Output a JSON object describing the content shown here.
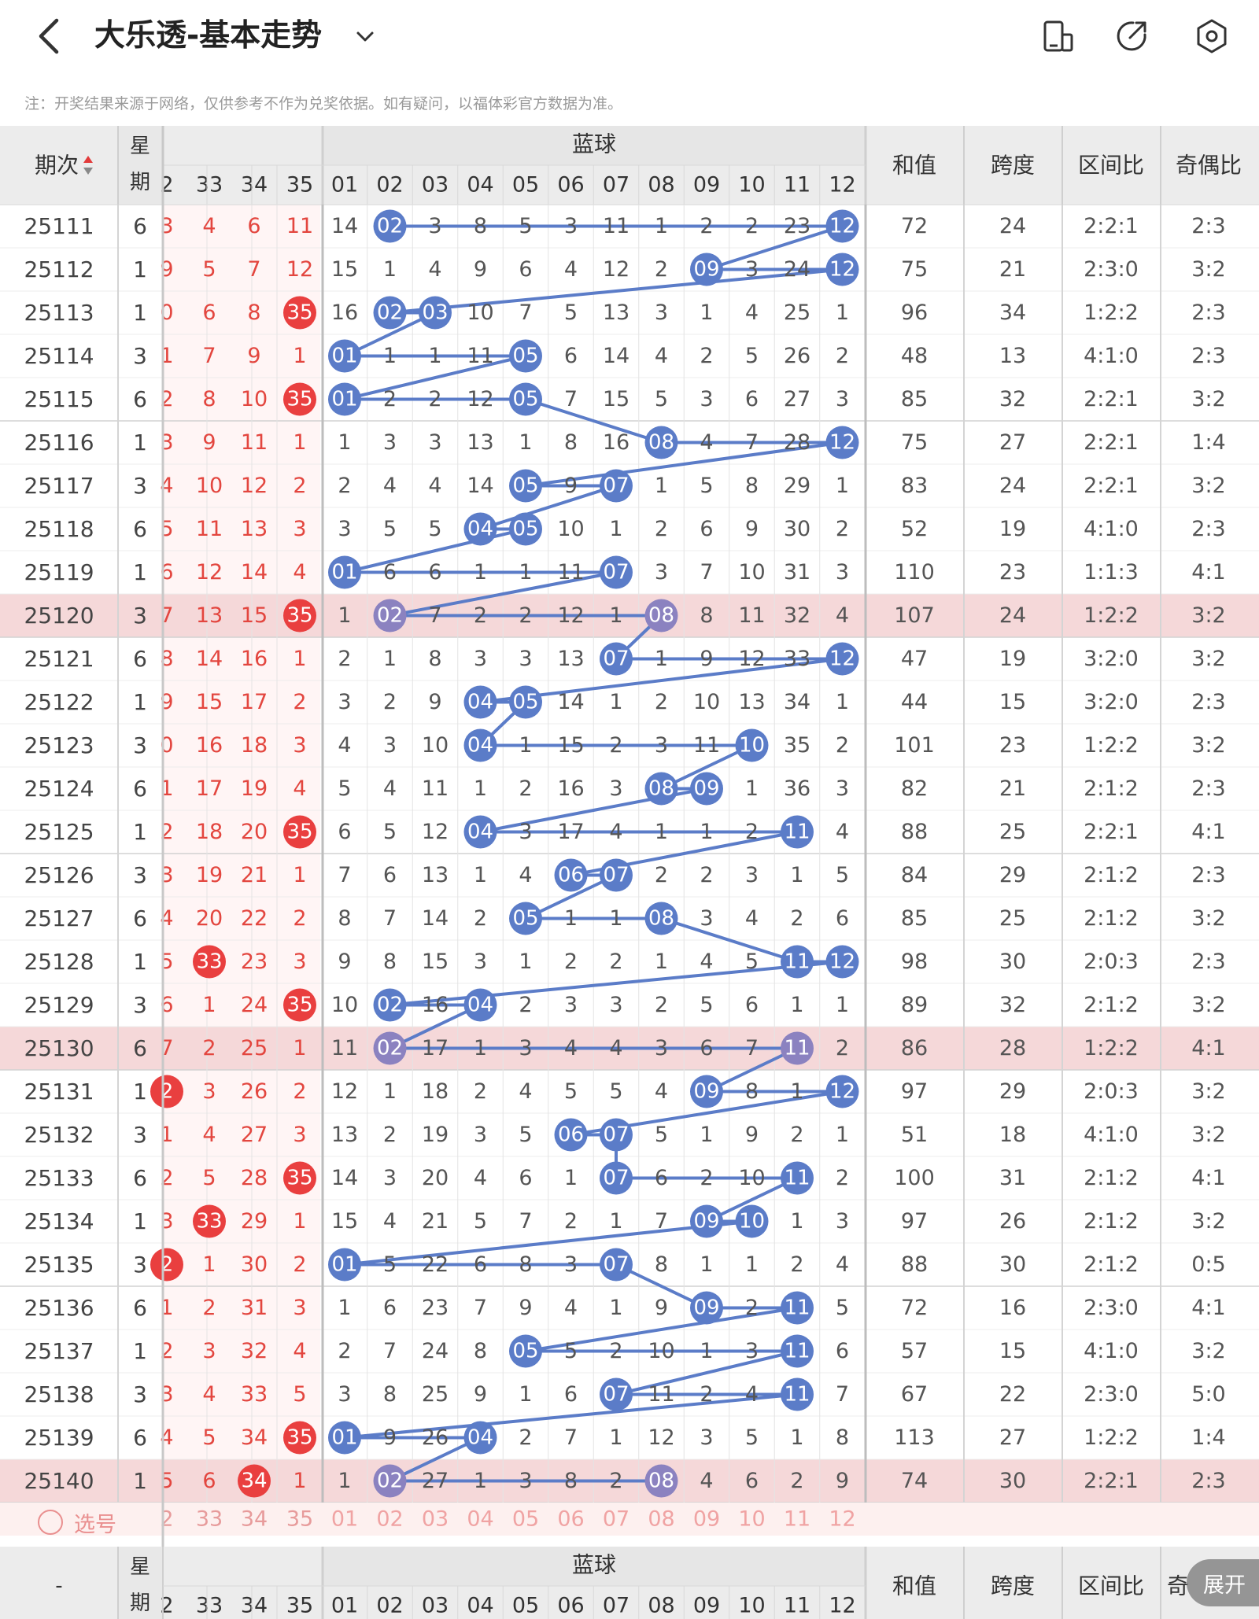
{
  "header": {
    "title": "大乐透-基本走势",
    "back_icon": "chevron-left-icon",
    "dropdown_icon": "chevron-down-icon",
    "icons": [
      "split-screen-icon",
      "share-icon",
      "settings-icon"
    ]
  },
  "note": "注：开奖结果来源于网络，仅供参考不作为兑奖依据。如有疑问，以福体彩官方数据为准。",
  "columns": {
    "period": "期次",
    "week": "星期",
    "week_lines": [
      "星",
      "期"
    ],
    "blue_group": "蓝球",
    "red_tail": [
      "2",
      "33",
      "34",
      "35"
    ],
    "blue": [
      "01",
      "02",
      "03",
      "04",
      "05",
      "06",
      "07",
      "08",
      "09",
      "10",
      "11",
      "12"
    ],
    "sum": "和值",
    "span": "跨度",
    "zone_ratio": "区间比",
    "odd_even": "奇偶比",
    "odd_even_cut": "奇"
  },
  "colors": {
    "blue_ball": "#5b7cc8",
    "red_ball": "#e93f3f",
    "highlight_row": "#f5d8d9",
    "highlight_ball": "#8b82c0",
    "red_text": "#e3463f",
    "header_bg": "#ececec"
  },
  "rows": [
    {
      "period": "25111",
      "week": "6",
      "red": [
        "3",
        "4",
        "6",
        "11"
      ],
      "red_hit": [],
      "blue": [
        "14",
        "02",
        "3",
        "8",
        "5",
        "3",
        "11",
        "1",
        "2",
        "2",
        "23",
        "12"
      ],
      "blue_hit": [
        1,
        11
      ],
      "sum": "72",
      "span": "24",
      "zone": "2:2:1",
      "oe": "2:3",
      "hl": false
    },
    {
      "period": "25112",
      "week": "1",
      "red": [
        "9",
        "5",
        "7",
        "12"
      ],
      "red_hit": [],
      "blue": [
        "15",
        "1",
        "4",
        "9",
        "6",
        "4",
        "12",
        "2",
        "09",
        "3",
        "24",
        "12"
      ],
      "blue_hit": [
        8,
        11
      ],
      "sum": "75",
      "span": "21",
      "zone": "2:3:0",
      "oe": "3:2",
      "hl": false
    },
    {
      "period": "25113",
      "week": "1",
      "red": [
        "0",
        "6",
        "8",
        "35"
      ],
      "red_hit": [
        3
      ],
      "blue": [
        "16",
        "02",
        "03",
        "10",
        "7",
        "5",
        "13",
        "3",
        "1",
        "4",
        "25",
        "1"
      ],
      "blue_hit": [
        1,
        2
      ],
      "sum": "96",
      "span": "34",
      "zone": "1:2:2",
      "oe": "2:3",
      "hl": false
    },
    {
      "period": "25114",
      "week": "3",
      "red": [
        "1",
        "7",
        "9",
        "1"
      ],
      "red_hit": [],
      "blue": [
        "01",
        "1",
        "1",
        "11",
        "05",
        "6",
        "14",
        "4",
        "2",
        "5",
        "26",
        "2"
      ],
      "blue_hit": [
        0,
        4
      ],
      "sum": "48",
      "span": "13",
      "zone": "4:1:0",
      "oe": "2:3",
      "hl": false
    },
    {
      "period": "25115",
      "week": "6",
      "red": [
        "2",
        "8",
        "10",
        "35"
      ],
      "red_hit": [
        3
      ],
      "blue": [
        "01",
        "2",
        "2",
        "12",
        "05",
        "7",
        "15",
        "5",
        "3",
        "6",
        "27",
        "3"
      ],
      "blue_hit": [
        0,
        4
      ],
      "sum": "85",
      "span": "32",
      "zone": "2:2:1",
      "oe": "3:2",
      "hl": false
    },
    {
      "period": "25116",
      "week": "1",
      "red": [
        "3",
        "9",
        "11",
        "1"
      ],
      "red_hit": [],
      "blue": [
        "1",
        "3",
        "3",
        "13",
        "1",
        "8",
        "16",
        "08",
        "4",
        "7",
        "28",
        "12"
      ],
      "blue_hit": [
        7,
        11
      ],
      "sum": "75",
      "span": "27",
      "zone": "2:2:1",
      "oe": "1:4",
      "hl": false
    },
    {
      "period": "25117",
      "week": "3",
      "red": [
        "4",
        "10",
        "12",
        "2"
      ],
      "red_hit": [],
      "blue": [
        "2",
        "4",
        "4",
        "14",
        "05",
        "9",
        "07",
        "1",
        "5",
        "8",
        "29",
        "1"
      ],
      "blue_hit": [
        4,
        6
      ],
      "sum": "83",
      "span": "24",
      "zone": "2:2:1",
      "oe": "3:2",
      "hl": false
    },
    {
      "period": "25118",
      "week": "6",
      "red": [
        "5",
        "11",
        "13",
        "3"
      ],
      "red_hit": [],
      "blue": [
        "3",
        "5",
        "5",
        "04",
        "05",
        "10",
        "1",
        "2",
        "6",
        "9",
        "30",
        "2"
      ],
      "blue_hit": [
        3,
        4
      ],
      "sum": "52",
      "span": "19",
      "zone": "4:1:0",
      "oe": "2:3",
      "hl": false
    },
    {
      "period": "25119",
      "week": "1",
      "red": [
        "6",
        "12",
        "14",
        "4"
      ],
      "red_hit": [],
      "blue": [
        "01",
        "6",
        "6",
        "1",
        "1",
        "11",
        "07",
        "3",
        "7",
        "10",
        "31",
        "3"
      ],
      "blue_hit": [
        0,
        6
      ],
      "sum": "110",
      "span": "23",
      "zone": "1:1:3",
      "oe": "4:1",
      "hl": false
    },
    {
      "period": "25120",
      "week": "3",
      "red": [
        "7",
        "13",
        "15",
        "35"
      ],
      "red_hit": [
        3
      ],
      "blue": [
        "1",
        "02",
        "7",
        "2",
        "2",
        "12",
        "1",
        "08",
        "8",
        "11",
        "32",
        "4"
      ],
      "blue_hit": [
        1,
        7
      ],
      "sum": "107",
      "span": "24",
      "zone": "1:2:2",
      "oe": "3:2",
      "hl": true
    },
    {
      "period": "25121",
      "week": "6",
      "red": [
        "8",
        "14",
        "16",
        "1"
      ],
      "red_hit": [],
      "blue": [
        "2",
        "1",
        "8",
        "3",
        "3",
        "13",
        "07",
        "1",
        "9",
        "12",
        "33",
        "12"
      ],
      "blue_hit": [
        6,
        11
      ],
      "sum": "47",
      "span": "19",
      "zone": "3:2:0",
      "oe": "3:2",
      "hl": false
    },
    {
      "period": "25122",
      "week": "1",
      "red": [
        "9",
        "15",
        "17",
        "2"
      ],
      "red_hit": [],
      "blue": [
        "3",
        "2",
        "9",
        "04",
        "05",
        "14",
        "1",
        "2",
        "10",
        "13",
        "34",
        "1"
      ],
      "blue_hit": [
        3,
        4
      ],
      "sum": "44",
      "span": "15",
      "zone": "3:2:0",
      "oe": "2:3",
      "hl": false
    },
    {
      "period": "25123",
      "week": "3",
      "red": [
        "0",
        "16",
        "18",
        "3"
      ],
      "red_hit": [],
      "blue": [
        "4",
        "3",
        "10",
        "04",
        "1",
        "15",
        "2",
        "3",
        "11",
        "10",
        "35",
        "2"
      ],
      "blue_hit": [
        3,
        9
      ],
      "sum": "101",
      "span": "23",
      "zone": "1:2:2",
      "oe": "3:2",
      "hl": false
    },
    {
      "period": "25124",
      "week": "6",
      "red": [
        "1",
        "17",
        "19",
        "4"
      ],
      "red_hit": [],
      "blue": [
        "5",
        "4",
        "11",
        "1",
        "2",
        "16",
        "3",
        "08",
        "09",
        "1",
        "36",
        "3"
      ],
      "blue_hit": [
        7,
        8
      ],
      "sum": "82",
      "span": "21",
      "zone": "2:1:2",
      "oe": "2:3",
      "hl": false
    },
    {
      "period": "25125",
      "week": "1",
      "red": [
        "2",
        "18",
        "20",
        "35"
      ],
      "red_hit": [
        3
      ],
      "blue": [
        "6",
        "5",
        "12",
        "04",
        "3",
        "17",
        "4",
        "1",
        "1",
        "2",
        "11",
        "4"
      ],
      "blue_hit": [
        3,
        10
      ],
      "sum": "88",
      "span": "25",
      "zone": "2:2:1",
      "oe": "4:1",
      "hl": false
    },
    {
      "period": "25126",
      "week": "3",
      "red": [
        "3",
        "19",
        "21",
        "1"
      ],
      "red_hit": [],
      "blue": [
        "7",
        "6",
        "13",
        "1",
        "4",
        "06",
        "07",
        "2",
        "2",
        "3",
        "1",
        "5"
      ],
      "blue_hit": [
        5,
        6
      ],
      "sum": "84",
      "span": "29",
      "zone": "2:1:2",
      "oe": "2:3",
      "hl": false
    },
    {
      "period": "25127",
      "week": "6",
      "red": [
        "4",
        "20",
        "22",
        "2"
      ],
      "red_hit": [],
      "blue": [
        "8",
        "7",
        "14",
        "2",
        "05",
        "1",
        "1",
        "08",
        "3",
        "4",
        "2",
        "6"
      ],
      "blue_hit": [
        4,
        7
      ],
      "sum": "85",
      "span": "25",
      "zone": "2:1:2",
      "oe": "3:2",
      "hl": false
    },
    {
      "period": "25128",
      "week": "1",
      "red": [
        "5",
        "33",
        "23",
        "3"
      ],
      "red_hit": [
        1
      ],
      "blue": [
        "9",
        "8",
        "15",
        "3",
        "1",
        "2",
        "2",
        "1",
        "4",
        "5",
        "11",
        "12"
      ],
      "blue_hit": [
        10,
        11
      ],
      "sum": "98",
      "span": "30",
      "zone": "2:0:3",
      "oe": "2:3",
      "hl": false
    },
    {
      "period": "25129",
      "week": "3",
      "red": [
        "6",
        "1",
        "24",
        "35"
      ],
      "red_hit": [
        3
      ],
      "blue": [
        "10",
        "02",
        "16",
        "04",
        "2",
        "3",
        "3",
        "2",
        "5",
        "6",
        "1",
        "1"
      ],
      "blue_hit": [
        1,
        3
      ],
      "sum": "89",
      "span": "32",
      "zone": "2:1:2",
      "oe": "3:2",
      "hl": false
    },
    {
      "period": "25130",
      "week": "6",
      "red": [
        "7",
        "2",
        "25",
        "1"
      ],
      "red_hit": [],
      "blue": [
        "11",
        "02",
        "17",
        "1",
        "3",
        "4",
        "4",
        "3",
        "6",
        "7",
        "11",
        "2"
      ],
      "blue_hit": [
        1,
        10
      ],
      "sum": "86",
      "span": "28",
      "zone": "1:2:2",
      "oe": "4:1",
      "hl": true
    },
    {
      "period": "25131",
      "week": "1",
      "red": [
        "2",
        "3",
        "26",
        "2"
      ],
      "red_hit": [
        0
      ],
      "blue": [
        "12",
        "1",
        "18",
        "2",
        "4",
        "5",
        "5",
        "4",
        "09",
        "8",
        "1",
        "12"
      ],
      "blue_hit": [
        8,
        11
      ],
      "sum": "97",
      "span": "29",
      "zone": "2:0:3",
      "oe": "3:2",
      "hl": false
    },
    {
      "period": "25132",
      "week": "3",
      "red": [
        "1",
        "4",
        "27",
        "3"
      ],
      "red_hit": [],
      "blue": [
        "13",
        "2",
        "19",
        "3",
        "5",
        "06",
        "07",
        "5",
        "1",
        "9",
        "2",
        "1"
      ],
      "blue_hit": [
        5,
        6
      ],
      "sum": "51",
      "span": "18",
      "zone": "4:1:0",
      "oe": "3:2",
      "hl": false
    },
    {
      "period": "25133",
      "week": "6",
      "red": [
        "2",
        "5",
        "28",
        "35"
      ],
      "red_hit": [
        3
      ],
      "blue": [
        "14",
        "3",
        "20",
        "4",
        "6",
        "1",
        "07",
        "6",
        "2",
        "10",
        "11",
        "2"
      ],
      "blue_hit": [
        6,
        10
      ],
      "sum": "100",
      "span": "31",
      "zone": "2:1:2",
      "oe": "4:1",
      "hl": false
    },
    {
      "period": "25134",
      "week": "1",
      "red": [
        "3",
        "33",
        "29",
        "1"
      ],
      "red_hit": [
        1
      ],
      "blue": [
        "15",
        "4",
        "21",
        "5",
        "7",
        "2",
        "1",
        "7",
        "09",
        "10",
        "1",
        "3"
      ],
      "blue_hit": [
        8,
        9
      ],
      "sum": "97",
      "span": "26",
      "zone": "2:1:2",
      "oe": "3:2",
      "hl": false
    },
    {
      "period": "25135",
      "week": "3",
      "red": [
        "2",
        "1",
        "30",
        "2"
      ],
      "red_hit": [
        0
      ],
      "blue": [
        "01",
        "5",
        "22",
        "6",
        "8",
        "3",
        "07",
        "8",
        "1",
        "1",
        "2",
        "4"
      ],
      "blue_hit": [
        0,
        6
      ],
      "sum": "88",
      "span": "30",
      "zone": "2:1:2",
      "oe": "0:5",
      "hl": false
    },
    {
      "period": "25136",
      "week": "6",
      "red": [
        "1",
        "2",
        "31",
        "3"
      ],
      "red_hit": [],
      "blue": [
        "1",
        "6",
        "23",
        "7",
        "9",
        "4",
        "1",
        "9",
        "09",
        "2",
        "11",
        "5"
      ],
      "blue_hit": [
        8,
        10
      ],
      "sum": "72",
      "span": "16",
      "zone": "2:3:0",
      "oe": "4:1",
      "hl": false
    },
    {
      "period": "25137",
      "week": "1",
      "red": [
        "2",
        "3",
        "32",
        "4"
      ],
      "red_hit": [],
      "blue": [
        "2",
        "7",
        "24",
        "8",
        "05",
        "5",
        "2",
        "10",
        "1",
        "3",
        "11",
        "6"
      ],
      "blue_hit": [
        4,
        10
      ],
      "sum": "57",
      "span": "15",
      "zone": "4:1:0",
      "oe": "3:2",
      "hl": false
    },
    {
      "period": "25138",
      "week": "3",
      "red": [
        "3",
        "4",
        "33",
        "5"
      ],
      "red_hit": [],
      "blue": [
        "3",
        "8",
        "25",
        "9",
        "1",
        "6",
        "07",
        "11",
        "2",
        "4",
        "11",
        "7"
      ],
      "blue_hit": [
        6,
        10
      ],
      "sum": "67",
      "span": "22",
      "zone": "2:3:0",
      "oe": "5:0",
      "hl": false
    },
    {
      "period": "25139",
      "week": "6",
      "red": [
        "4",
        "5",
        "34",
        "35"
      ],
      "red_hit": [
        3
      ],
      "blue": [
        "01",
        "9",
        "26",
        "04",
        "2",
        "7",
        "1",
        "12",
        "3",
        "5",
        "1",
        "8"
      ],
      "blue_hit": [
        0,
        3
      ],
      "sum": "113",
      "span": "27",
      "zone": "1:2:2",
      "oe": "1:4",
      "hl": false
    },
    {
      "period": "25140",
      "week": "1",
      "red": [
        "5",
        "6",
        "34",
        "1"
      ],
      "red_hit": [
        2
      ],
      "blue": [
        "1",
        "02",
        "27",
        "1",
        "3",
        "8",
        "2",
        "08",
        "4",
        "6",
        "2",
        "9"
      ],
      "blue_hit": [
        1,
        7
      ],
      "sum": "74",
      "span": "30",
      "zone": "2:2:1",
      "oe": "2:3",
      "hl": true
    }
  ],
  "select_row": {
    "label": "选号",
    "red": [
      "2",
      "33",
      "34",
      "35"
    ],
    "blue": [
      "01",
      "02",
      "03",
      "04",
      "05",
      "06",
      "07",
      "08",
      "09",
      "10",
      "11",
      "12"
    ]
  },
  "footer": {
    "period": "-"
  },
  "expand_label": "展开"
}
